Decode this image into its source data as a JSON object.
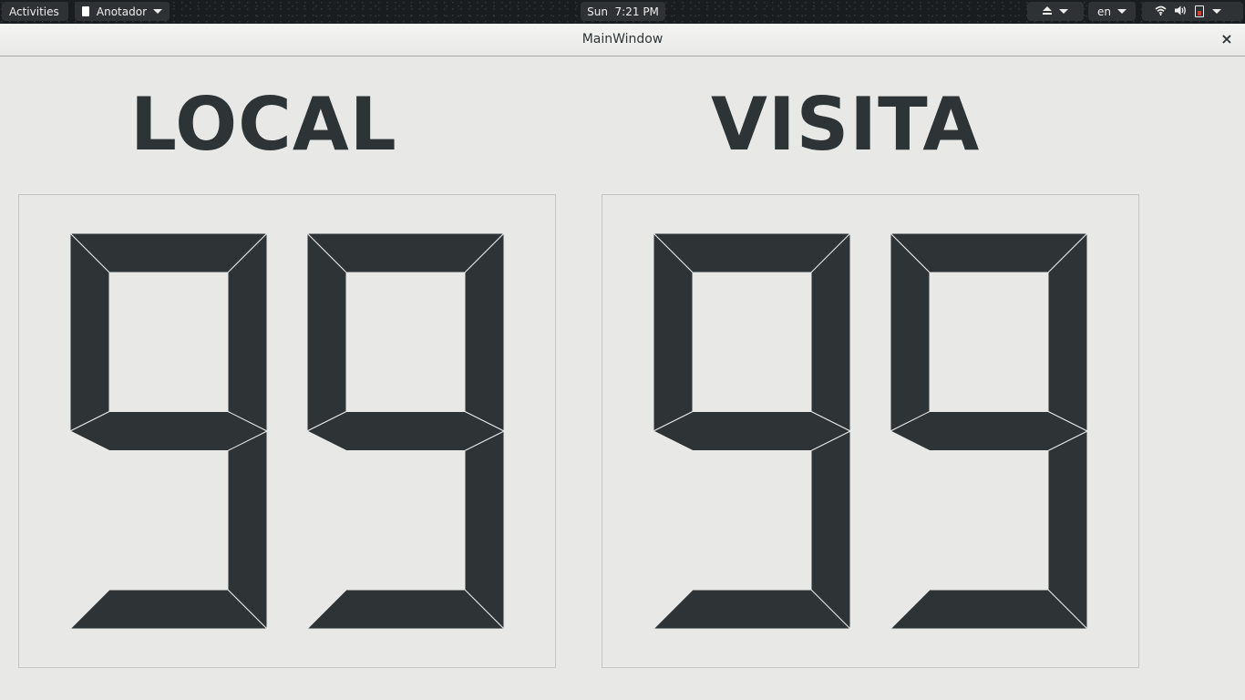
{
  "topbar": {
    "activities_label": "Activities",
    "app_menu_label": "Anotador",
    "clock": "Sun  7:21 PM",
    "input_language": "en",
    "icons": [
      "eject-icon",
      "wifi-icon",
      "volume-icon",
      "battery-icon",
      "power-menu-icon"
    ]
  },
  "window": {
    "title": "MainWindow",
    "close_label": "×"
  },
  "scoreboard": {
    "local": {
      "label": "LOCAL",
      "score": "99"
    },
    "visita": {
      "label": "VISITA",
      "score": "99"
    },
    "digit_color": "#2e3436",
    "background_color": "#e8e8e7"
  }
}
